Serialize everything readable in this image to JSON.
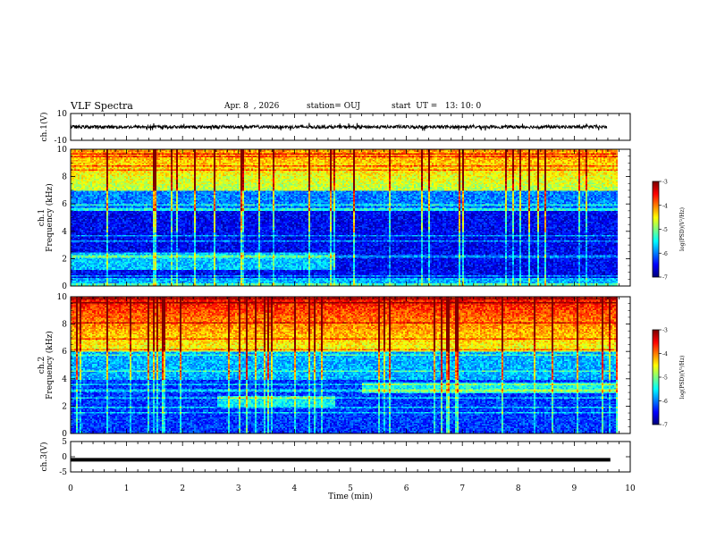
{
  "header": {
    "title": "VLF Spectra",
    "date": "Apr. 8  , 2026",
    "station": "station= OUJ",
    "start": "start  UT =   13: 10: 0"
  },
  "chart_data": [
    {
      "type": "line",
      "name": "ch1-waveform",
      "ylabel": "ch.1(V)",
      "ylim": [
        -10,
        10
      ],
      "yticks": [
        "10",
        "-10"
      ],
      "xlim": [
        0,
        10
      ],
      "description_values": {
        "mean": 0,
        "amplitude": 1.2
      }
    },
    {
      "type": "heatmap",
      "name": "ch1-spectrogram",
      "ylabel": "ch.1\nFrequency (kHz)",
      "ylabel_lines": [
        "ch.1",
        "Frequency (kHz)"
      ],
      "ylim": [
        0,
        10
      ],
      "yticks": [
        "0",
        "2",
        "4",
        "6",
        "8",
        "10"
      ],
      "xlim": [
        0,
        10
      ],
      "data_end_min": 9.8,
      "colorbar": {
        "label": "log(PSD)(V²/Hz)",
        "range": [
          -7,
          -3
        ],
        "ticks": [
          "-3",
          "-4",
          "-5",
          "-6",
          "-7"
        ]
      }
    },
    {
      "type": "heatmap",
      "name": "ch2-spectrogram",
      "ylabel": "ch.2\nFrequency (kHz)",
      "ylabel_lines": [
        "ch.2",
        "Frequency (kHz)"
      ],
      "ylim": [
        0,
        10
      ],
      "yticks": [
        "0",
        "2",
        "4",
        "6",
        "8",
        "10"
      ],
      "xlim": [
        0,
        10
      ],
      "data_end_min": 9.8,
      "colorbar": {
        "label": "log(PSD)(V²/Hz)",
        "range": [
          -7,
          -3
        ],
        "ticks": [
          "-3",
          "-4",
          "-5",
          "-6",
          "-7"
        ]
      }
    },
    {
      "type": "line",
      "name": "ch3-waveform",
      "ylabel": "ch.3(V)",
      "ylim": [
        -5,
        5
      ],
      "yticks": [
        "5",
        "0",
        "-5"
      ],
      "xlim": [
        0,
        10
      ],
      "description_values": {
        "mean": -1.0,
        "amplitude": 0.1
      }
    }
  ],
  "xaxis": {
    "label": "Time (min)",
    "ticks": [
      "0",
      "1",
      "2",
      "3",
      "4",
      "5",
      "6",
      "7",
      "8",
      "9",
      "10"
    ]
  }
}
